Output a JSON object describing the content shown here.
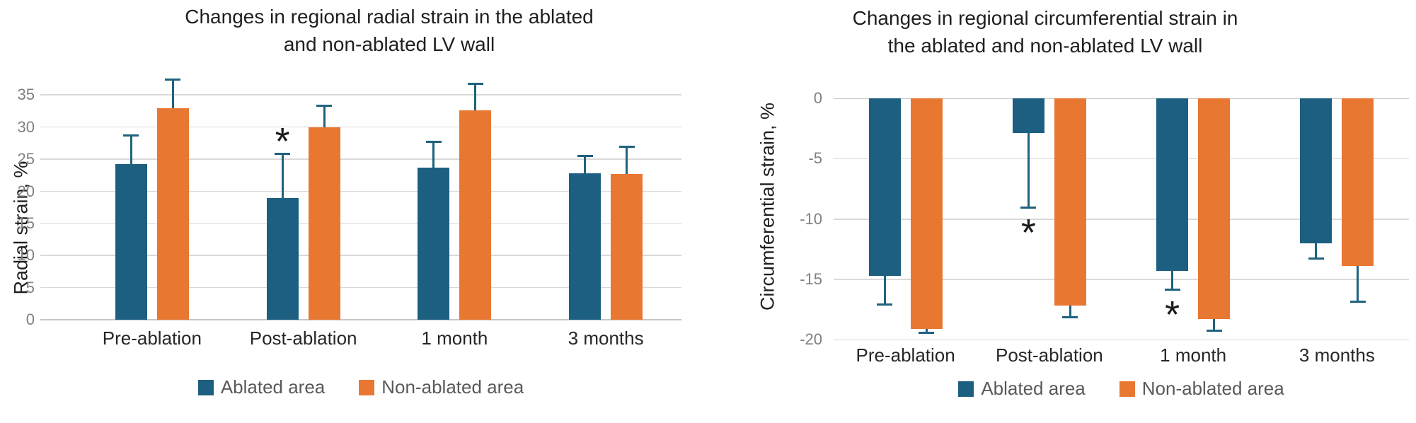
{
  "colors": {
    "ablated": "#1d5f80",
    "non_ablated": "#e87732",
    "error_bar": "#20627e",
    "gridline": "#d9d9d9",
    "title_text": "#1f1f1f",
    "tick_text": "#7f7f7f",
    "category_text": "#262626",
    "legend_text": "#595959",
    "background": "#ffffff"
  },
  "chart_data": [
    {
      "type": "bar",
      "title": "Changes in regional radial strain in the ablated and non-ablated LV wall",
      "title_lines": [
        "Changes in regional radial strain in the ablated",
        "and non-ablated LV wall"
      ],
      "xlabel": "",
      "ylabel": "Radial strain, %",
      "orientation": "up",
      "axis_span": 40,
      "ylim": [
        0,
        40
      ],
      "grid": true,
      "legend_position": "bottom",
      "tick_values": [
        0,
        5,
        10,
        15,
        20,
        25,
        30,
        35
      ],
      "tick_labels": [
        "0",
        "5",
        "10",
        "15",
        "20",
        "25",
        "30",
        "35"
      ],
      "categories": [
        "Pre-ablation",
        "Post-ablation",
        "1 month",
        "3 months"
      ],
      "series": [
        {
          "name": "Ablated area",
          "color": "#1d5f80",
          "values": [
            24.2,
            18.9,
            23.7,
            22.8
          ],
          "errors": [
            4.6,
            7.0,
            4.1,
            2.8
          ],
          "sig": [
            false,
            true,
            false,
            false
          ]
        },
        {
          "name": "Non-ablated area",
          "color": "#e87732",
          "values": [
            33.0,
            30.0,
            32.6,
            22.7
          ],
          "errors": [
            4.5,
            3.4,
            4.2,
            4.3
          ],
          "sig": [
            false,
            false,
            false,
            false
          ]
        }
      ],
      "annotations": [
        "* above Post-ablation ablated-area error bar"
      ]
    },
    {
      "type": "bar",
      "title": "Changes in regional circumferential strain in the ablated and non-ablated LV wall",
      "title_lines": [
        "Changes in regional circumferential strain in",
        "the ablated and non-ablated LV wall"
      ],
      "xlabel": "",
      "ylabel": "Circumferential strain, %",
      "orientation": "down",
      "axis_span": 20,
      "ylim": [
        -20,
        0
      ],
      "grid": true,
      "legend_position": "bottom",
      "tick_values": [
        0,
        -5,
        -10,
        -15,
        -20
      ],
      "tick_labels": [
        "0",
        "-5",
        "-10",
        "-15",
        "-20"
      ],
      "categories": [
        "Pre-ablation",
        "Post-ablation",
        "1 month",
        "3 months"
      ],
      "series": [
        {
          "name": "Ablated area",
          "color": "#1d5f80",
          "values": [
            -14.7,
            -2.9,
            -14.3,
            -12.0
          ],
          "errors": [
            2.4,
            6.2,
            1.6,
            1.3
          ],
          "sig": [
            false,
            true,
            true,
            false
          ]
        },
        {
          "name": "Non-ablated area",
          "color": "#e87732",
          "values": [
            -19.1,
            -17.2,
            -18.3,
            -13.9
          ],
          "errors": [
            0.4,
            1.0,
            1.0,
            3.0
          ],
          "sig": [
            false,
            false,
            false,
            false
          ]
        }
      ],
      "annotations": [
        "* below Post-ablation and 1 month ablated-area error bars"
      ]
    }
  ]
}
